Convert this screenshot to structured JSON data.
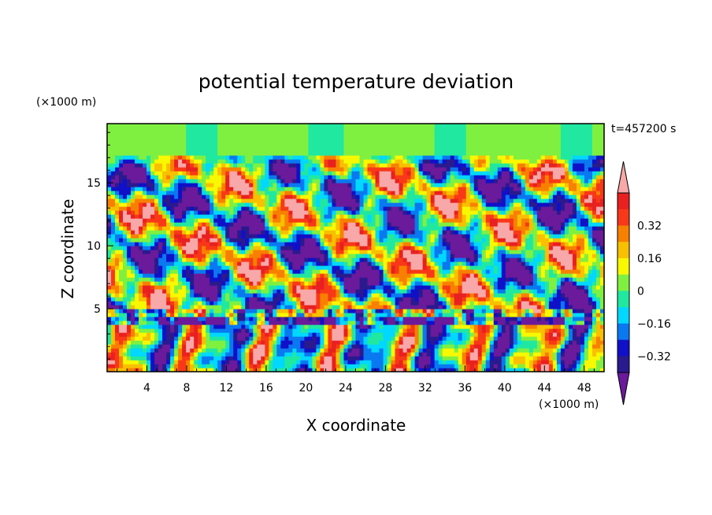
{
  "chart_data": {
    "type": "heatmap",
    "title": "potential temperature deviation",
    "xlabel": "X coordinate",
    "ylabel": "Z coordinate",
    "x_unit": "(×1000 m)",
    "y_unit": "(×1000 m)",
    "time_label": "t=457200 s",
    "xlim": [
      0,
      50
    ],
    "ylim": [
      0,
      19.7
    ],
    "x_ticks": [
      4,
      8,
      12,
      16,
      20,
      24,
      28,
      32,
      36,
      40,
      44,
      48
    ],
    "x_tick_labels": [
      "4",
      "8",
      "12",
      "16",
      "20",
      "24",
      "28",
      "32",
      "36",
      "40",
      "44",
      "48"
    ],
    "y_ticks": [
      5,
      10,
      15
    ],
    "y_tick_labels": [
      "5",
      "10",
      "15"
    ],
    "colorbar": {
      "levels": [
        -0.48,
        -0.4,
        -0.32,
        -0.24,
        -0.16,
        -0.08,
        0,
        0.08,
        0.16,
        0.24,
        0.32,
        0.4,
        0.48
      ],
      "tick_values": [
        0.32,
        0.16,
        0,
        -0.16,
        -0.32
      ],
      "tick_labels": [
        "0.32",
        "0.16",
        "0",
        "−0.16",
        "−0.32"
      ],
      "colors": [
        "#6a1a9a",
        "#2a1a8e",
        "#1010c8",
        "#0a78f0",
        "#00d8ff",
        "#20e8a0",
        "#80f040",
        "#f8f800",
        "#f8c000",
        "#f88000",
        "#f83818",
        "#e82020",
        "#f8a8a8"
      ]
    },
    "grid": false
  }
}
